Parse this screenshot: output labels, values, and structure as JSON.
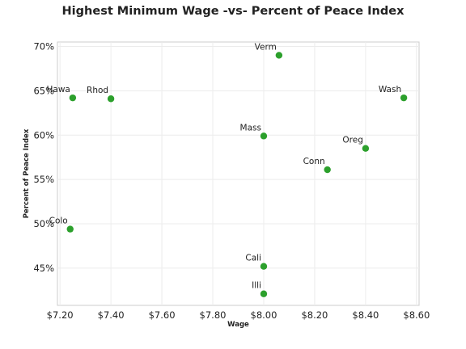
{
  "chart_data": {
    "type": "scatter",
    "title": "Highest Minimum Wage -vs- Percent of Peace Index",
    "xlabel": "Wage",
    "ylabel": "Percent of Peace Index",
    "xlim": [
      7.19,
      8.61
    ],
    "ylim": [
      40.8,
      70.5
    ],
    "x_ticks": [
      7.2,
      7.4,
      7.6,
      7.8,
      8.0,
      8.2,
      8.4,
      8.6
    ],
    "x_tick_labels": [
      "$7.20",
      "$7.40",
      "$7.60",
      "$7.80",
      "$8.00",
      "$8.20",
      "$8.40",
      "$8.60"
    ],
    "y_ticks": [
      45,
      50,
      55,
      60,
      65,
      70
    ],
    "y_tick_labels": [
      "45%",
      "50%",
      "55%",
      "60%",
      "65%",
      "70%"
    ],
    "grid": true,
    "marker_color": "#2ca02c",
    "points": [
      {
        "label": "Verm",
        "x": 8.06,
        "y": 69.0
      },
      {
        "label": "Hawa",
        "x": 7.25,
        "y": 64.2
      },
      {
        "label": "Rhod",
        "x": 7.4,
        "y": 64.1
      },
      {
        "label": "Wash",
        "x": 8.55,
        "y": 64.2
      },
      {
        "label": "Mass",
        "x": 8.0,
        "y": 59.9
      },
      {
        "label": "Oreg",
        "x": 8.4,
        "y": 58.5
      },
      {
        "label": "Conn",
        "x": 8.25,
        "y": 56.1
      },
      {
        "label": "Colo",
        "x": 7.24,
        "y": 49.4
      },
      {
        "label": "Cali",
        "x": 8.0,
        "y": 45.2
      },
      {
        "label": "Illi",
        "x": 8.0,
        "y": 42.1
      }
    ]
  }
}
